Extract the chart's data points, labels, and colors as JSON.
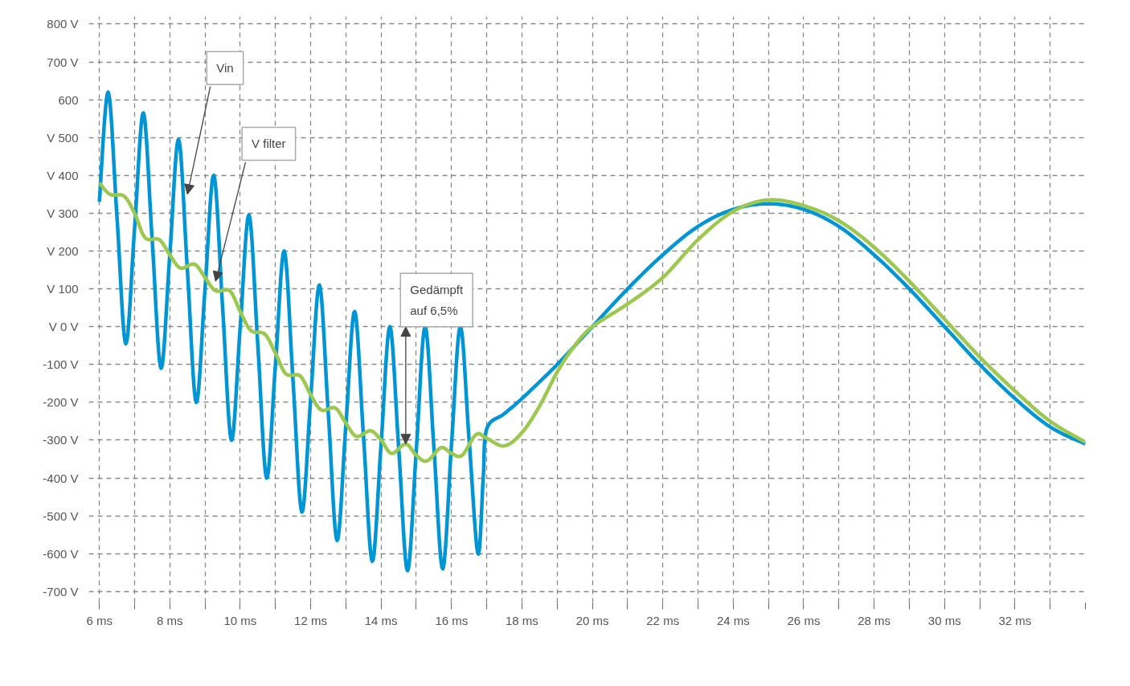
{
  "chart_data": {
    "type": "line",
    "xlim": [
      5.7,
      34
    ],
    "ylim": [
      -730,
      820
    ],
    "xticks": [
      {
        "value": 6,
        "label": "6 ms"
      },
      {
        "value": 7,
        "label": null
      },
      {
        "value": 8,
        "label": "8 ms"
      },
      {
        "value": 9,
        "label": null
      },
      {
        "value": 10,
        "label": "10 ms"
      },
      {
        "value": 11,
        "label": null
      },
      {
        "value": 12,
        "label": "12 ms"
      },
      {
        "value": 13,
        "label": null
      },
      {
        "value": 14,
        "label": "14 ms"
      },
      {
        "value": 15,
        "label": null
      },
      {
        "value": 16,
        "label": "16 ms"
      },
      {
        "value": 17,
        "label": null
      },
      {
        "value": 18,
        "label": "18 ms"
      },
      {
        "value": 19,
        "label": null
      },
      {
        "value": 20,
        "label": "20 ms"
      },
      {
        "value": 21,
        "label": null
      },
      {
        "value": 22,
        "label": "22 ms"
      },
      {
        "value": 23,
        "label": null
      },
      {
        "value": 24,
        "label": "24 ms"
      },
      {
        "value": 25,
        "label": null
      },
      {
        "value": 26,
        "label": "26 ms"
      },
      {
        "value": 27,
        "label": null
      },
      {
        "value": 28,
        "label": "28 ms"
      },
      {
        "value": 29,
        "label": null
      },
      {
        "value": 30,
        "label": "30 ms"
      },
      {
        "value": 31,
        "label": null
      },
      {
        "value": 32,
        "label": "32 ms"
      },
      {
        "value": 33,
        "label": null
      },
      {
        "value": 34,
        "label": null
      }
    ],
    "yticks": [
      {
        "value": 800,
        "label": "800 V"
      },
      {
        "value": 700,
        "label": "700 V"
      },
      600,
      {
        "value": 500,
        "label": "V 500"
      },
      {
        "value": 400,
        "label": "V 400"
      },
      {
        "value": 300,
        "label": "V 300"
      },
      {
        "value": 200,
        "label": "V 200"
      },
      {
        "value": 100,
        "label": "V 100"
      },
      {
        "value": 0,
        "label": "V 0 V"
      },
      {
        "value": -100,
        "label": "-100 V"
      },
      {
        "value": -200,
        "label": "-200 V"
      },
      {
        "value": -300,
        "label": "-300 V"
      },
      {
        "value": -400,
        "label": "-400 V"
      },
      {
        "value": -500,
        "label": "-500 V"
      },
      {
        "value": -600,
        "label": "-600 V"
      },
      {
        "value": -700,
        "label": "-700 V"
      }
    ],
    "grid": true,
    "line_style": "solid",
    "marker": "none",
    "series": [
      {
        "color": "#0096d6",
        "x": [
          6.0,
          6.25,
          6.5,
          6.75,
          7.0,
          7.25,
          7.5,
          7.75,
          8.0,
          8.25,
          8.5,
          8.75,
          9.0,
          9.25,
          9.5,
          9.75,
          10.0,
          10.25,
          10.5,
          10.75,
          11.0,
          11.25,
          11.5,
          11.75,
          12.0,
          12.25,
          12.5,
          12.75,
          13.0,
          13.25,
          13.5,
          13.75,
          14.0,
          14.25,
          14.5,
          14.75,
          15.0,
          15.25,
          15.5,
          15.75,
          16.0,
          16.25,
          16.5,
          16.75,
          16.9,
          17.0,
          17.5,
          18,
          19,
          20,
          21,
          22,
          23,
          24,
          25,
          26,
          27,
          28,
          29,
          30,
          31,
          32,
          33,
          34
        ],
        "values": [
          330,
          620,
          290,
          -45,
          260,
          565,
          228,
          -110,
          190,
          495,
          148,
          -200,
          100,
          400,
          50,
          -300,
          0,
          295,
          -50,
          -400,
          -100,
          200,
          -145,
          -490,
          -190,
          110,
          -228,
          -565,
          -260,
          40,
          -290,
          -620,
          -310,
          0,
          -322,
          -645,
          -325,
          0,
          -320,
          -640,
          -310,
          0,
          -300,
          -600,
          -400,
          -270,
          -230,
          -190,
          -100,
          0,
          100,
          190,
          265,
          310,
          325,
          310,
          265,
          190,
          100,
          0,
          -100,
          -190,
          -265,
          -310
        ]
      },
      {
        "color": "#9dc850",
        "x": [
          6.0,
          6.3,
          6.7,
          7.0,
          7.3,
          7.7,
          8.0,
          8.3,
          8.7,
          9.0,
          9.3,
          9.7,
          10.0,
          10.3,
          10.7,
          11.0,
          11.3,
          11.7,
          12.0,
          12.3,
          12.7,
          13.0,
          13.3,
          13.7,
          14.0,
          14.3,
          14.7,
          15.0,
          15.3,
          15.7,
          16.0,
          16.3,
          16.7,
          17.0,
          17.5,
          18.0,
          18.5,
          19.0,
          19.5,
          20,
          21,
          22,
          23,
          24,
          25,
          26,
          27,
          28,
          29,
          30,
          31,
          32,
          33,
          34
        ],
        "values": [
          380,
          350,
          345,
          300,
          235,
          230,
          190,
          155,
          165,
          130,
          95,
          95,
          40,
          -10,
          -20,
          -70,
          -125,
          -130,
          -180,
          -220,
          -215,
          -255,
          -290,
          -275,
          -300,
          -335,
          -310,
          -340,
          -355,
          -320,
          -335,
          -340,
          -285,
          -295,
          -315,
          -280,
          -210,
          -120,
          -50,
          0,
          60,
          130,
          230,
          305,
          335,
          320,
          280,
          210,
          120,
          20,
          -80,
          -170,
          -250,
          -305
        ]
      }
    ],
    "annotations": [
      {
        "text": "Vin",
        "x": 8.5,
        "y": 350
      },
      {
        "text": "V filter",
        "x": 9.3,
        "y": 120
      },
      {
        "text": "Gedämpft\nauf 6,5%",
        "x": 14.7,
        "y": -310
      }
    ]
  }
}
